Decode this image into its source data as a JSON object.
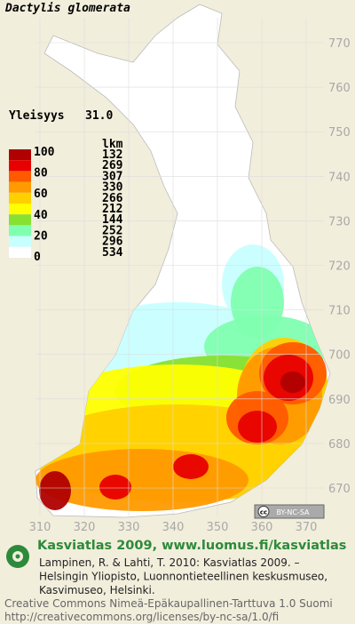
{
  "title": "Dactylis glomerata",
  "frequency": {
    "label": "Yleisyys",
    "value": "31.0"
  },
  "legend": {
    "header": "lkm",
    "levels": [
      100,
      80,
      60,
      40,
      20,
      0
    ],
    "classes": [
      {
        "color": "#b00000",
        "count": 132
      },
      {
        "color": "#e80000",
        "count": 269
      },
      {
        "color": "#ff5a00",
        "count": 307
      },
      {
        "color": "#ff9a00",
        "count": 330
      },
      {
        "color": "#ffd000",
        "count": 266
      },
      {
        "color": "#ffff00",
        "count": 212
      },
      {
        "color": "#88e030",
        "count": 144
      },
      {
        "color": "#80ffb0",
        "count": 252
      },
      {
        "color": "#c8ffff",
        "count": 296
      },
      {
        "color": "#ffffff",
        "count": 534
      }
    ]
  },
  "y_labels": [
    770,
    760,
    750,
    740,
    730,
    720,
    710,
    700,
    690,
    680,
    670
  ],
  "x_labels": [
    310,
    320,
    330,
    340,
    350,
    360,
    370
  ],
  "badge": {
    "icon": "cc",
    "text": "BY-NC-SA"
  },
  "footer": {
    "title": "Kasviatlas 2009, www.luomus.fi/kasviatlas",
    "citation": [
      "Lampinen, R. & Lahti, T. 2010: Kasviatlas 2009. –",
      "Helsingin Yliopisto, Luonnontieteellinen keskusmuseo,",
      "Kasvimuseo, Helsinki."
    ],
    "license": [
      "Creative Commons Nimeä-Epäkaupallinen-Tarttuva 1.0 Suomi",
      "http://creativecommons.org/licenses/by-nc-sa/1.0/fi"
    ]
  }
}
